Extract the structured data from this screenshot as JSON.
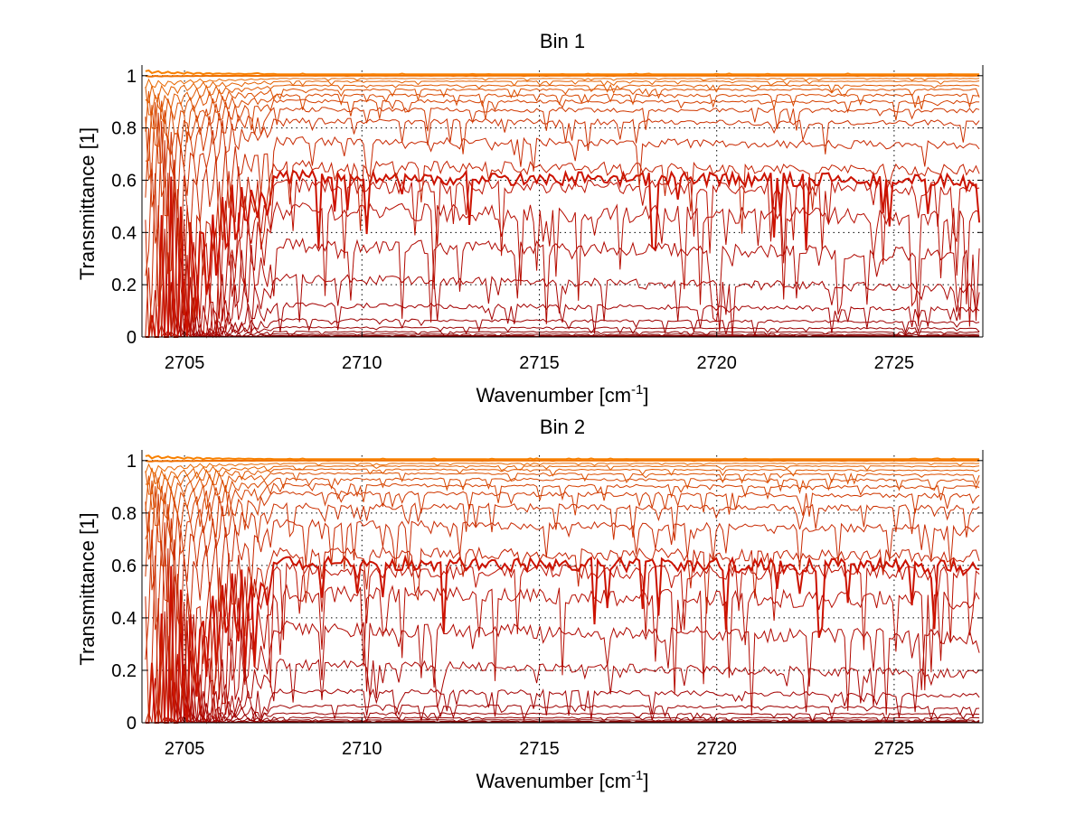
{
  "chart_data": [
    {
      "type": "line",
      "title": "Bin 1",
      "xlabel": "Wavenumber [cm",
      "xlabel_sup": "-1",
      "xlabel_end": "]",
      "ylabel": "Transmittance [1]",
      "xlim": [
        2703.8,
        2727.5
      ],
      "ylim": [
        0,
        1.02
      ],
      "xticks": [
        2705,
        2710,
        2715,
        2720,
        2725
      ],
      "xtick_labels": [
        "2705",
        "2710",
        "2715",
        "2720",
        "2725"
      ],
      "yticks": [
        0,
        0.2,
        0.4,
        0.6,
        0.8,
        1
      ],
      "ytick_labels": [
        "0",
        "0.2",
        "0.4",
        "0.6",
        "0.8",
        "1"
      ],
      "grid": true,
      "series": [
        {
          "values": [
            0.001,
            0.001
          ],
          "color": "#7a0000"
        },
        {
          "values": [
            0.003,
            0.003
          ],
          "color": "#800000"
        },
        {
          "values": [
            0.006,
            0.006
          ],
          "color": "#860000"
        },
        {
          "values": [
            0.012,
            0.011
          ],
          "color": "#8c0000"
        },
        {
          "values": [
            0.022,
            0.02
          ],
          "color": "#920000"
        },
        {
          "values": [
            0.04,
            0.036
          ],
          "color": "#980000"
        },
        {
          "values": [
            0.072,
            0.063
          ],
          "color": "#9e0000"
        },
        {
          "values": [
            0.135,
            0.115
          ],
          "color": "#a40000"
        },
        {
          "values": [
            0.25,
            0.205
          ],
          "color": "#aa0400"
        },
        {
          "values": [
            0.385,
            0.345
          ],
          "color": "#b00800"
        },
        {
          "values": [
            0.52,
            0.495
          ],
          "color": "#b60c00"
        },
        {
          "values": [
            0.61,
            0.595
          ],
          "color": "#bc1000"
        },
        {
          "values": [
            0.64,
            0.625
          ],
          "color": "#cc1200"
        },
        {
          "values": [
            0.68,
            0.66
          ],
          "color": "#c42000"
        },
        {
          "values": [
            0.77,
            0.75
          ],
          "color": "#c82800"
        },
        {
          "values": [
            0.84,
            0.83
          ],
          "color": "#cc3000"
        },
        {
          "values": [
            0.88,
            0.875
          ],
          "color": "#d03800"
        },
        {
          "values": [
            0.91,
            0.905
          ],
          "color": "#d44000"
        },
        {
          "values": [
            0.93,
            0.93
          ],
          "color": "#d84800"
        },
        {
          "values": [
            0.95,
            0.95
          ],
          "color": "#dc5000"
        },
        {
          "values": [
            0.965,
            0.965
          ],
          "color": "#e05800"
        },
        {
          "values": [
            0.98,
            0.98
          ],
          "color": "#e46000"
        },
        {
          "values": [
            0.99,
            0.99
          ],
          "color": "#e86800"
        },
        {
          "values": [
            1.0,
            1.0
          ],
          "color": "#f07000"
        },
        {
          "values": [
            1.005,
            1.005
          ],
          "color": "#f88000"
        }
      ]
    },
    {
      "type": "line",
      "title": "Bin 2",
      "xlabel": "Wavenumber [cm",
      "xlabel_sup": "-1",
      "xlabel_end": "]",
      "ylabel": "Transmittance [1]",
      "xlim": [
        2703.8,
        2727.5
      ],
      "ylim": [
        0,
        1.02
      ],
      "xticks": [
        2705,
        2710,
        2715,
        2720,
        2725
      ],
      "xtick_labels": [
        "2705",
        "2710",
        "2715",
        "2720",
        "2725"
      ],
      "yticks": [
        0,
        0.2,
        0.4,
        0.6,
        0.8,
        1
      ],
      "ytick_labels": [
        "0",
        "0.2",
        "0.4",
        "0.6",
        "0.8",
        "1"
      ],
      "grid": true,
      "series": [
        {
          "values": [
            0.001,
            0.001
          ],
          "color": "#7a0000"
        },
        {
          "values": [
            0.003,
            0.003
          ],
          "color": "#800000"
        },
        {
          "values": [
            0.006,
            0.006
          ],
          "color": "#860000"
        },
        {
          "values": [
            0.012,
            0.011
          ],
          "color": "#8c0000"
        },
        {
          "values": [
            0.022,
            0.02
          ],
          "color": "#920000"
        },
        {
          "values": [
            0.04,
            0.036
          ],
          "color": "#980000"
        },
        {
          "values": [
            0.072,
            0.063
          ],
          "color": "#9e0000"
        },
        {
          "values": [
            0.135,
            0.115
          ],
          "color": "#a40000"
        },
        {
          "values": [
            0.25,
            0.205
          ],
          "color": "#aa0400"
        },
        {
          "values": [
            0.395,
            0.355
          ],
          "color": "#b00800"
        },
        {
          "values": [
            0.53,
            0.5
          ],
          "color": "#b60c00"
        },
        {
          "values": [
            0.61,
            0.6
          ],
          "color": "#bc1000"
        },
        {
          "values": [
            0.635,
            0.625
          ],
          "color": "#cc1200"
        },
        {
          "values": [
            0.675,
            0.66
          ],
          "color": "#c42000"
        },
        {
          "values": [
            0.78,
            0.755
          ],
          "color": "#c82800"
        },
        {
          "values": [
            0.84,
            0.83
          ],
          "color": "#cc3000"
        },
        {
          "values": [
            0.885,
            0.875
          ],
          "color": "#d03800"
        },
        {
          "values": [
            0.915,
            0.905
          ],
          "color": "#d44000"
        },
        {
          "values": [
            0.935,
            0.93
          ],
          "color": "#d84800"
        },
        {
          "values": [
            0.955,
            0.95
          ],
          "color": "#dc5000"
        },
        {
          "values": [
            0.97,
            0.965
          ],
          "color": "#e05800"
        },
        {
          "values": [
            0.98,
            0.98
          ],
          "color": "#e46000"
        },
        {
          "values": [
            0.99,
            0.99
          ],
          "color": "#e86800"
        },
        {
          "values": [
            1.0,
            1.0
          ],
          "color": "#f07000"
        },
        {
          "values": [
            1.005,
            1.005
          ],
          "color": "#f88000"
        }
      ]
    }
  ]
}
